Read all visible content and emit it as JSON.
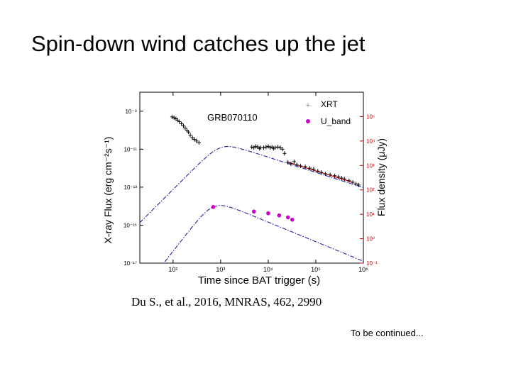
{
  "slide": {
    "title": "Spin-down wind catches up the jet",
    "citation": "Du S., et al., 2016, MNRAS, 462, 2990",
    "continued": "To be continued..."
  },
  "chart_data": {
    "type": "scatter",
    "annotation": "GRB070110",
    "xlabel": "Time since BAT trigger (s)",
    "ylabel_left": "X-ray Flux (erg cm⁻²s⁻¹)",
    "ylabel_right": "Flux density (μJy)",
    "xscale": "log",
    "yscale": "log",
    "xlim": [
      20,
      1000000
    ],
    "ylim_left": [
      1e-17,
      1e-08
    ],
    "ylim_right": [
      0.1,
      1000000.0
    ],
    "x_ticks": [
      {
        "v": 100,
        "label": "10²"
      },
      {
        "v": 1000,
        "label": "10³"
      },
      {
        "v": 10000,
        "label": "10⁴"
      },
      {
        "v": 100000,
        "label": "10⁵"
      },
      {
        "v": 1000000,
        "label": "10⁶"
      }
    ],
    "y_ticks_left": [
      {
        "v": 1e-09,
        "label": "10⁻⁹"
      },
      {
        "v": 1e-11,
        "label": "10⁻¹¹"
      },
      {
        "v": 1e-13,
        "label": "10⁻¹³"
      },
      {
        "v": 1e-15,
        "label": "10⁻¹⁵"
      },
      {
        "v": 1e-17,
        "label": "10⁻¹⁷"
      }
    ],
    "y_ticks_right": [
      {
        "v": 100000.0,
        "label": "10⁵"
      },
      {
        "v": 10000.0,
        "label": "10⁴"
      },
      {
        "v": 1000.0,
        "label": "10³"
      },
      {
        "v": 100.0,
        "label": "10²"
      },
      {
        "v": 10.0,
        "label": "10¹"
      },
      {
        "v": 1.0,
        "label": "10⁰"
      },
      {
        "v": 0.1,
        "label": "10⁻¹"
      }
    ],
    "legend": {
      "position": "top-right",
      "entries": [
        "XRT",
        "U_band"
      ]
    },
    "colors": {
      "xrt": "#000000",
      "u_band": "#cc00cc",
      "model": "#2222aa",
      "fit": "#cc0000",
      "right_axis": "#cc0000"
    },
    "series": [
      {
        "name": "XRT",
        "axis": "left",
        "x": [
          95,
          105,
          115,
          125,
          135,
          150,
          165,
          180,
          195,
          210,
          230,
          255,
          280,
          310,
          350,
          4500,
          5000,
          5500,
          6000,
          6500,
          7000,
          8000,
          9000,
          10000,
          11000,
          12000,
          13000,
          14000,
          16000,
          18000,
          20000,
          22000,
          26000,
          30000,
          35000,
          40000,
          48000,
          60000,
          75000,
          90000,
          110000,
          130000,
          160000,
          200000,
          250000,
          300000,
          350000,
          400000,
          500000,
          600000,
          700000,
          800000
        ],
        "y": [
          5e-10,
          4.5e-10,
          4e-10,
          3.4e-10,
          2.8e-10,
          2.2e-10,
          1.7e-10,
          1.3e-10,
          1e-10,
          8e-11,
          5.5e-11,
          4e-11,
          3.3e-11,
          2.7e-11,
          2.2e-11,
          1.3e-11,
          1.2e-11,
          1.4e-11,
          1.3e-11,
          1.1e-11,
          1.2e-11,
          1.2e-11,
          1.3e-11,
          1.4e-11,
          1.2e-11,
          1.3e-11,
          1.1e-11,
          1.2e-11,
          1.3e-11,
          1.2e-11,
          1e-11,
          6e-12,
          2e-12,
          1.7e-12,
          2.2e-12,
          1.5e-12,
          1.3e-12,
          1.2e-12,
          1e-12,
          9e-13,
          7e-13,
          6e-13,
          5e-13,
          4.5e-13,
          4e-13,
          3.5e-13,
          3e-13,
          2.7e-13,
          2.2e-13,
          1.8e-13,
          1.5e-13,
          1.3e-13
        ]
      },
      {
        "name": "U_band",
        "axis": "right",
        "x": [
          700,
          5000,
          10000,
          17000,
          26000,
          32000
        ],
        "y": [
          20,
          13,
          11,
          9,
          7.5,
          6
        ]
      }
    ]
  }
}
